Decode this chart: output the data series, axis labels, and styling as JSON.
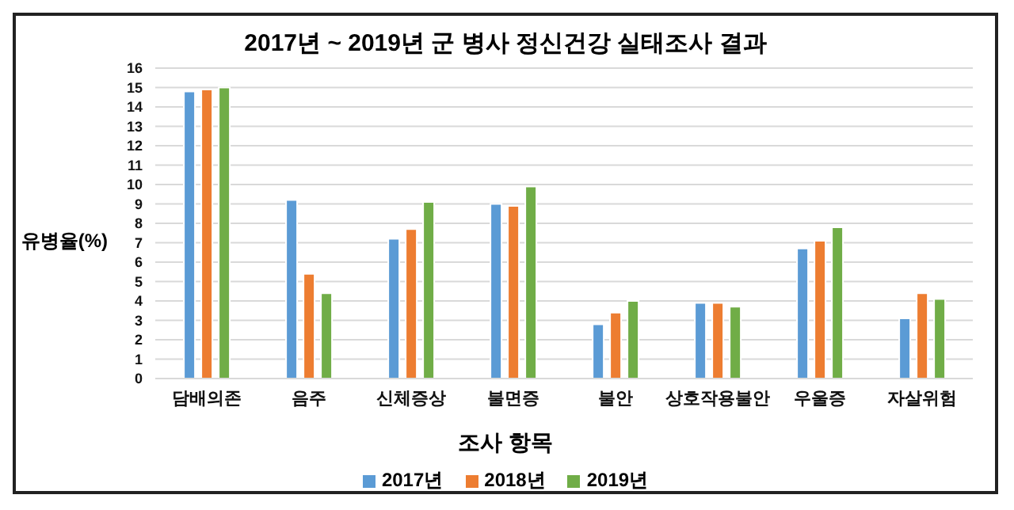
{
  "chart_data": {
    "type": "bar",
    "title": "2017년 ~ 2019년 군 병사 정신건강 실태조사 결과",
    "xlabel": "조사 항목",
    "ylabel": "유병율(%)",
    "categories": [
      "담배의존",
      "음주",
      "신체증상",
      "불면증",
      "불안",
      "상호작용불안",
      "우울증",
      "자살위험"
    ],
    "series": [
      {
        "name": "2017년",
        "color": "#5b9bd5",
        "values": [
          14.8,
          9.2,
          7.2,
          9.0,
          2.8,
          3.9,
          6.7,
          3.1
        ]
      },
      {
        "name": "2018년",
        "color": "#ed7d31",
        "values": [
          14.9,
          5.4,
          7.7,
          8.9,
          3.4,
          3.9,
          7.1,
          4.4
        ]
      },
      {
        "name": "2019년",
        "color": "#70ad47",
        "values": [
          15.0,
          4.4,
          9.1,
          9.9,
          4.0,
          3.7,
          7.8,
          4.1
        ]
      }
    ],
    "ylim": [
      0,
      16
    ],
    "yticks": [
      0,
      1,
      2,
      3,
      4,
      5,
      6,
      7,
      8,
      9,
      10,
      11,
      12,
      13,
      14,
      15,
      16
    ],
    "grid": "y",
    "legend": "bottom"
  }
}
